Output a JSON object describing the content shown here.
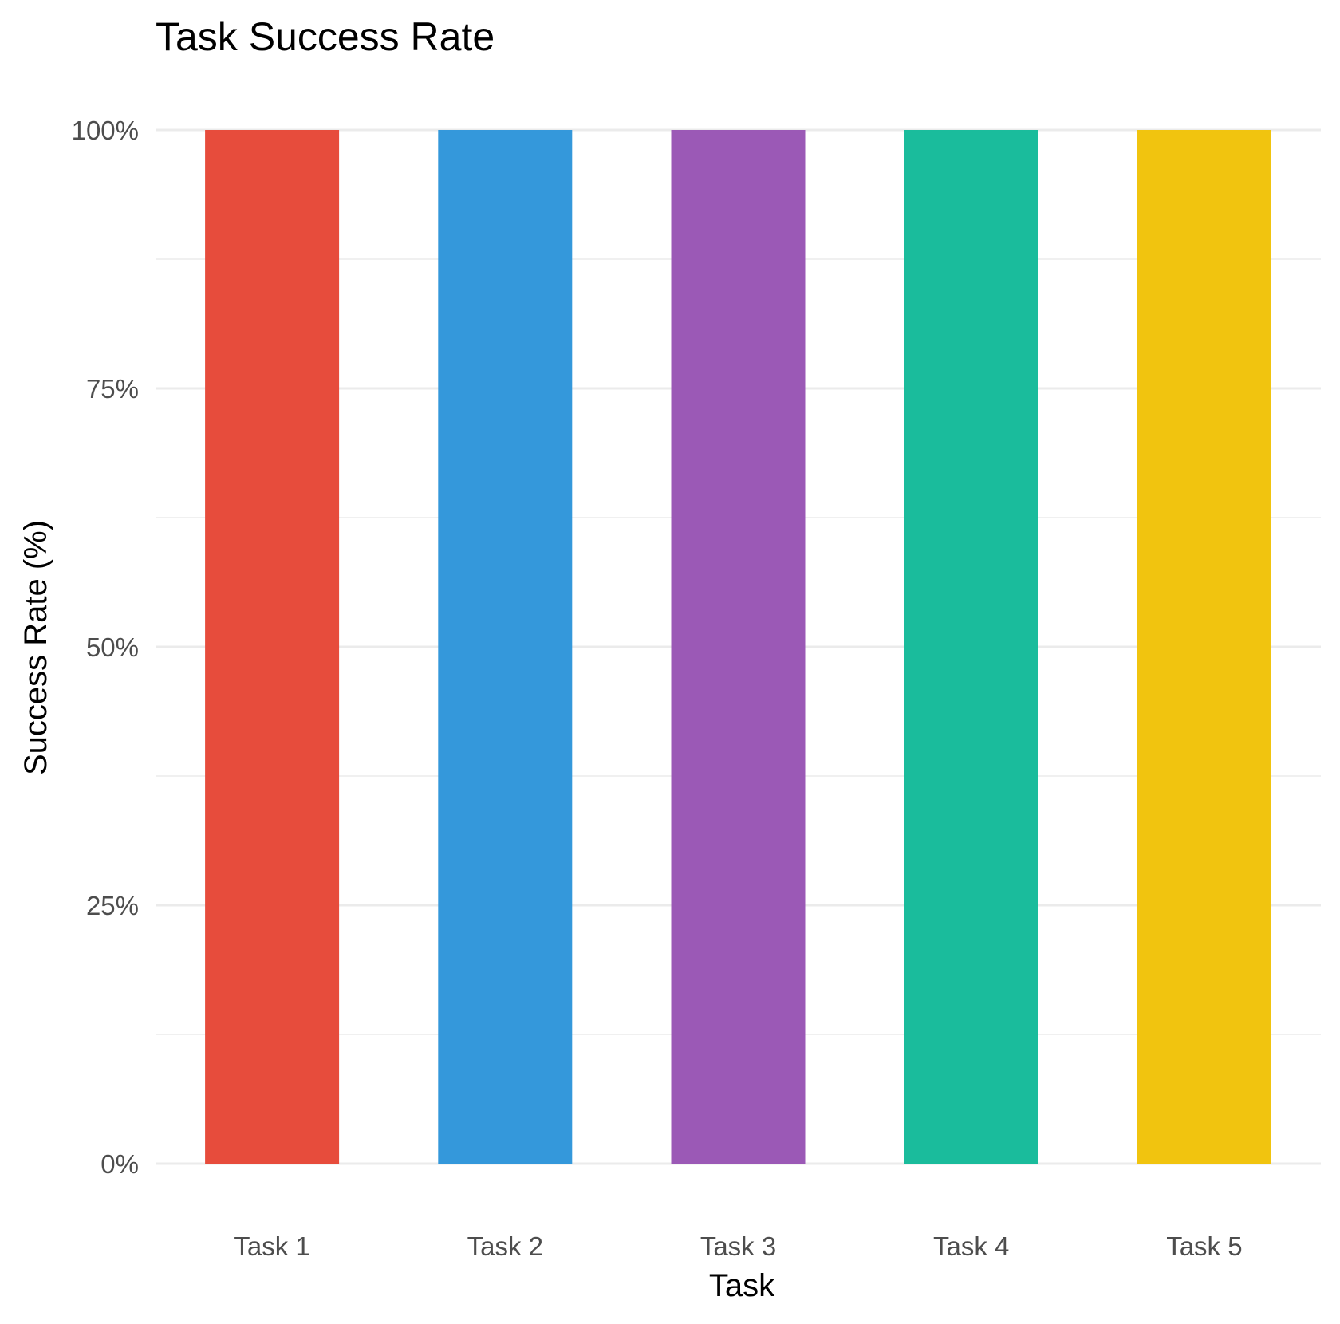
{
  "chart_data": {
    "type": "bar",
    "title": "Task Success Rate",
    "xlabel": "Task",
    "ylabel": "Success Rate (%)",
    "categories": [
      "Task 1",
      "Task 2",
      "Task 3",
      "Task 4",
      "Task 5"
    ],
    "values": [
      100,
      100,
      100,
      100,
      100
    ],
    "colors": [
      "#E74C3C",
      "#3498DB",
      "#9B59B6",
      "#1ABC9C",
      "#F1C40F"
    ],
    "ylim": [
      0,
      100
    ],
    "yticks": [
      0,
      25,
      50,
      75,
      100
    ],
    "ytick_labels": [
      "0%",
      "25%",
      "50%",
      "75%",
      "100%"
    ],
    "grid": true,
    "legend": "none"
  }
}
